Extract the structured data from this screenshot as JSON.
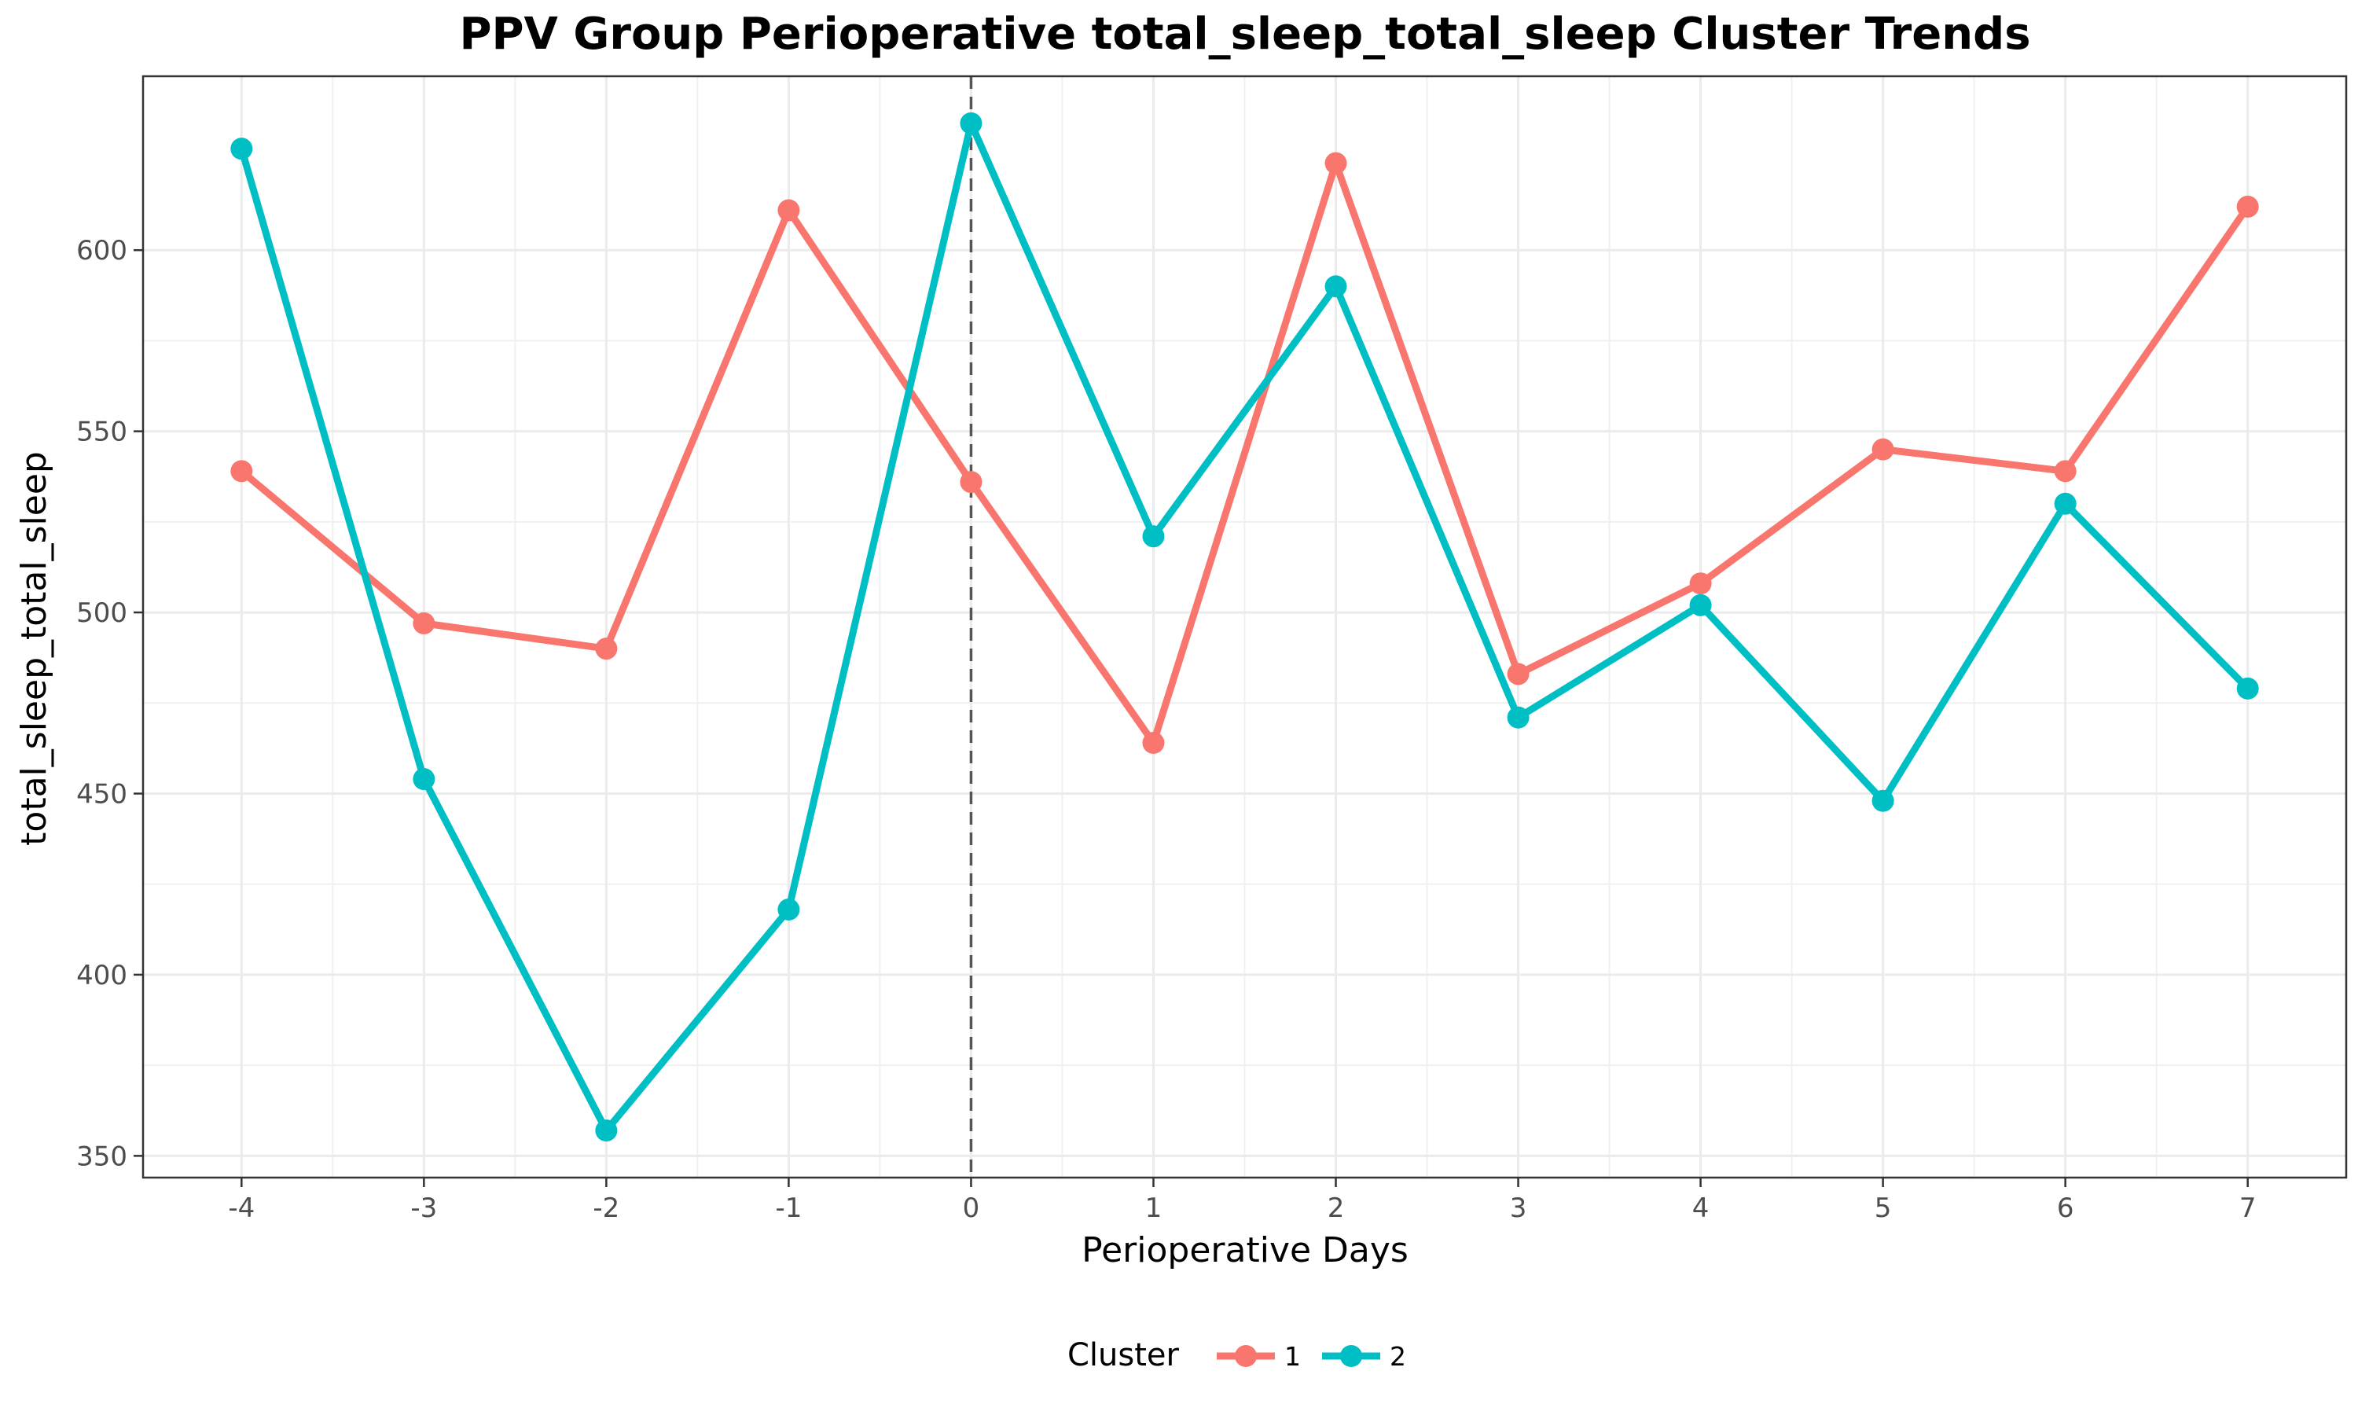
{
  "chart_data": {
    "type": "line",
    "title": "PPV Group Perioperative total_sleep_total_sleep Cluster Trends",
    "xlabel": "Perioperative Days",
    "ylabel": "total_sleep_total_sleep",
    "x": [
      -4,
      -3,
      -2,
      -1,
      0,
      1,
      2,
      3,
      4,
      5,
      6,
      7
    ],
    "x_tick_labels": [
      "-4",
      "-3",
      "-2",
      "-1",
      "0",
      "1",
      "2",
      "3",
      "4",
      "5",
      "6",
      "7"
    ],
    "xlim": [
      -4.54,
      7.54
    ],
    "ylim": [
      344,
      648
    ],
    "y_ticks": [
      350,
      400,
      450,
      500,
      550,
      600
    ],
    "y_tick_labels": [
      "350",
      "400",
      "450",
      "500",
      "550",
      "600"
    ],
    "reference_line": {
      "x": 0,
      "style": "dashed"
    },
    "grid": true,
    "legend": {
      "title": "Cluster",
      "position": "bottom"
    },
    "series": [
      {
        "name": "1",
        "color": "#F8766D",
        "values": [
          539,
          497,
          490,
          611,
          536,
          464,
          624,
          483,
          508,
          545,
          539,
          612
        ]
      },
      {
        "name": "2",
        "color": "#00BFC4",
        "values": [
          628,
          454,
          357,
          418,
          635,
          521,
          590,
          471,
          502,
          448,
          530,
          479
        ]
      }
    ]
  }
}
